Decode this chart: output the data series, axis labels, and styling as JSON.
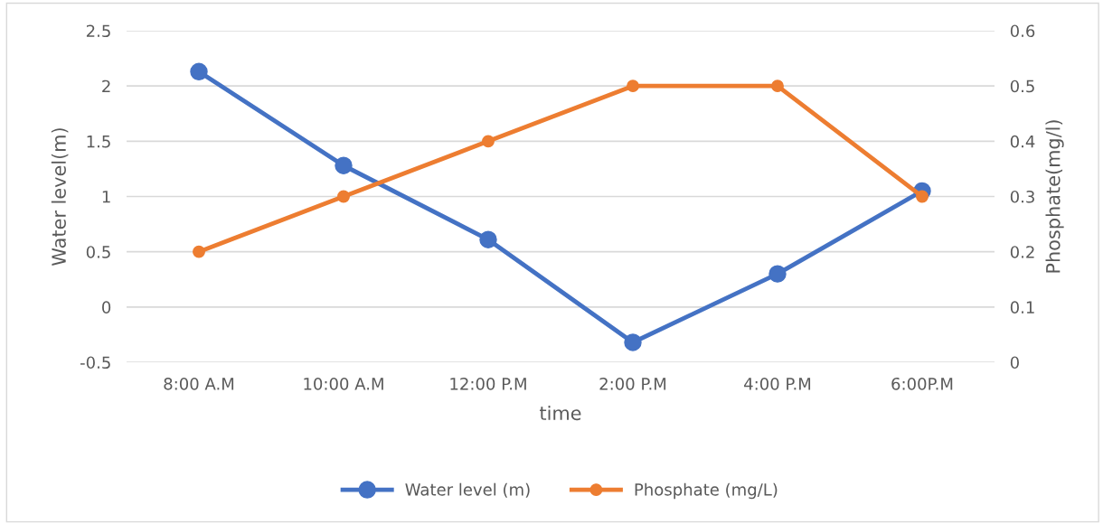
{
  "chart_data": {
    "type": "line",
    "xlabel": "time",
    "ylabel": "Water level(m)",
    "y2label": "Phosphate(mg/l)",
    "categories": [
      "8:00 A.M",
      "10:00 A.M",
      "12:00 P.M",
      "2:00 P.M",
      "4:00 P.M",
      "6:00P.M"
    ],
    "series": [
      {
        "name": "Water level (m)",
        "color": "#4472c4",
        "values": [
          2.13,
          1.28,
          0.61,
          -0.32,
          0.3,
          1.05
        ]
      },
      {
        "name": "Phosphate (mg/L)",
        "color": "#ed7d31",
        "axis": "y2",
        "values": [
          0.2,
          0.3,
          0.4,
          0.5,
          0.5,
          0.3
        ]
      }
    ],
    "ylim": [
      -0.5,
      2.5
    ],
    "yticks": [
      {
        "value": -0.5,
        "label": "-0.5"
      },
      0,
      0.5,
      1,
      1.5,
      2,
      2.5
    ],
    "y2lim": [
      0,
      0.6
    ],
    "y2ticks": [
      0,
      0.1,
      0.2,
      0.3,
      0.4,
      0.5,
      0.6
    ],
    "grid": "y",
    "legend": "bottom",
    "marker": "circle",
    "line_style": "solid"
  }
}
